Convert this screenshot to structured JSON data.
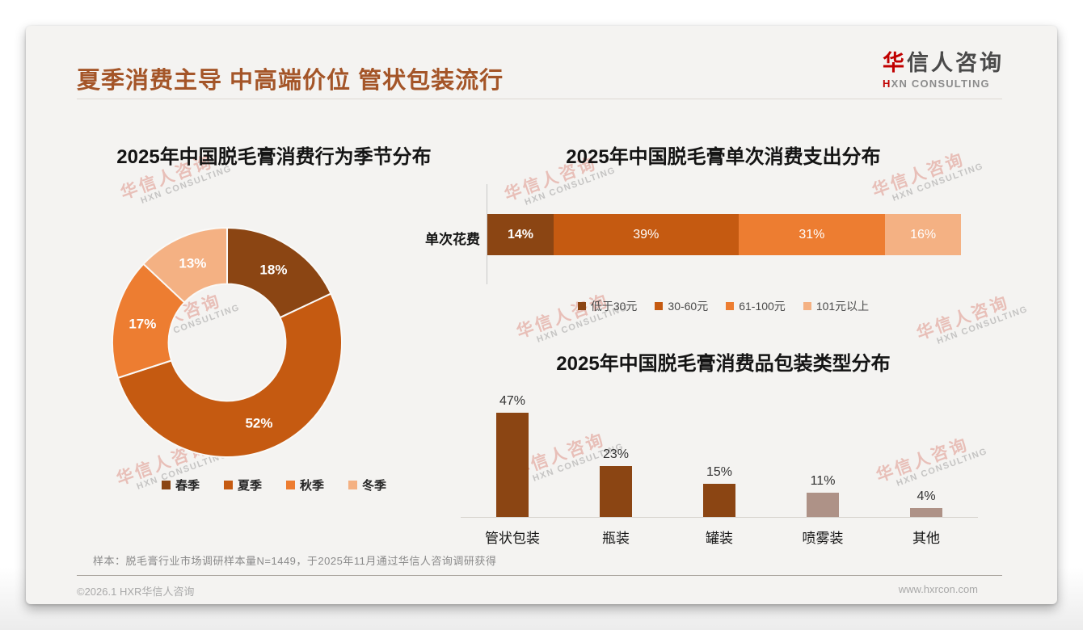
{
  "page": {
    "title": "夏季消费主导 中高端价位 管状包装流行",
    "logo": {
      "cn_first": "华",
      "cn_rest": "信人咨询",
      "en_first": "H",
      "en_rest": "XN CONSULTING"
    },
    "watermark": {
      "cn": "华信人咨询",
      "en": "HXN CONSULTING"
    },
    "footnote": "样本：脱毛膏行业市场调研样本量N=1449，于2025年11月通过华信人咨询调研获得",
    "footer_left": "©2026.1 HXR华信人咨询",
    "footer_right": "www.hxrcon.com"
  },
  "colors": {
    "title_brown": "#A45528",
    "logo_red": "#C00000",
    "dark_brown": "#8B4513",
    "mid_brown": "#C55A11",
    "orange": "#ED7D31",
    "peach": "#F4B183",
    "mauve": "#AE9287"
  },
  "chart_data": [
    {
      "type": "pie",
      "subtype": "donut",
      "title": "2025年中国脱毛膏消费行为季节分布",
      "categories": [
        "春季",
        "夏季",
        "秋季",
        "冬季"
      ],
      "values": [
        18,
        52,
        17,
        13
      ],
      "labels": [
        "18%",
        "52%",
        "17%",
        "13%"
      ],
      "colors": [
        "#8B4513",
        "#C55A11",
        "#ED7D31",
        "#F4B183"
      ],
      "start_angle": "top",
      "direction": "clockwise",
      "inner_radius_ratio": 0.51,
      "legend_position": "bottom"
    },
    {
      "type": "bar",
      "subtype": "horizontal-stacked",
      "title": "2025年中国脱毛膏单次消费支出分布",
      "categories": [
        "单次花费"
      ],
      "series": [
        {
          "name": "低于30元",
          "values": [
            14
          ],
          "label": "14%"
        },
        {
          "name": "30-60元",
          "values": [
            39
          ],
          "label": "39%"
        },
        {
          "name": "61-100元",
          "values": [
            31
          ],
          "label": "31%"
        },
        {
          "name": "101元以上",
          "values": [
            16
          ],
          "label": "16%"
        }
      ],
      "colors": [
        "#8B4513",
        "#C55A11",
        "#ED7D31",
        "#F4B183"
      ],
      "xlim": [
        0,
        100
      ],
      "unit": "%",
      "legend_position": "bottom"
    },
    {
      "type": "bar",
      "subtype": "vertical",
      "title": "2025年中国脱毛膏消费品包装类型分布",
      "categories": [
        "管状包装",
        "瓶装",
        "罐装",
        "喷雾装",
        "其他"
      ],
      "values": [
        47,
        23,
        15,
        11,
        4
      ],
      "labels": [
        "47%",
        "23%",
        "15%",
        "11%",
        "4%"
      ],
      "colors": [
        "#8B4513",
        "#8B4513",
        "#8B4513",
        "#AE9287",
        "#AE9287"
      ],
      "ylim": [
        0,
        52
      ],
      "gridlines": false,
      "legend_position": "none"
    }
  ]
}
